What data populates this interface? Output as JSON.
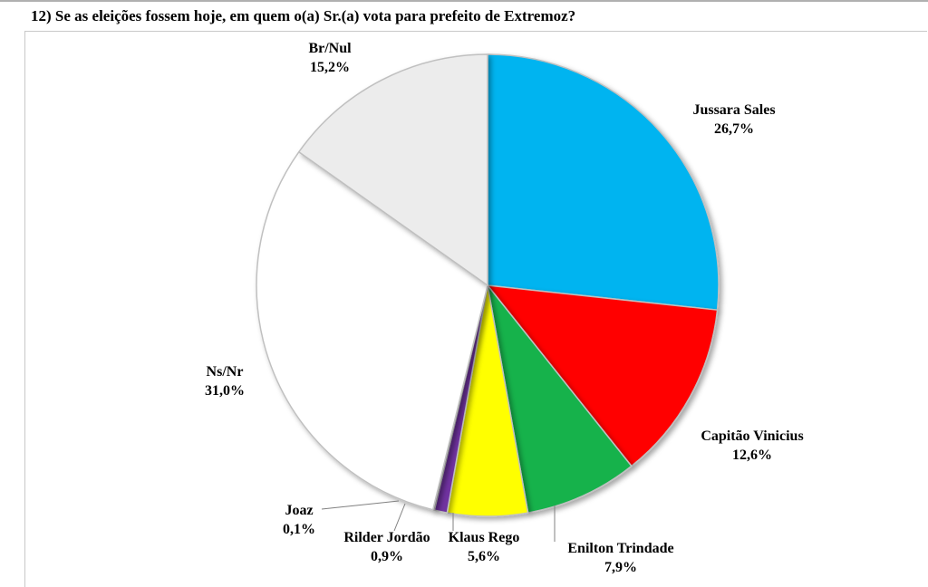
{
  "question": "12) Se as eleições fossem hoje, em quem o(a) Sr.(a) vota para prefeito de Extremoz?",
  "chart_data": {
    "type": "pie",
    "title": "12) Se as eleições fossem hoje, em quem o(a) Sr.(a) vota para prefeito de Extremoz?",
    "slices": [
      {
        "name": "Jussara Sales",
        "value": 26.7,
        "label": "26,7%",
        "color": "#00b4f0"
      },
      {
        "name": "Capitão Vinicius",
        "value": 12.6,
        "label": "12,6%",
        "color": "#ff0000"
      },
      {
        "name": "Enilton Trindade",
        "value": 7.9,
        "label": "7,9%",
        "color": "#12b24c"
      },
      {
        "name": "Klaus Rego",
        "value": 5.6,
        "label": "5,6%",
        "color": "#ffff00"
      },
      {
        "name": "Rilder Jordão",
        "value": 0.9,
        "label": "0,9%",
        "color": "#7030a0"
      },
      {
        "name": "Joaz",
        "value": 0.1,
        "label": "0,1%",
        "color": "#202020"
      },
      {
        "name": "Ns/Nr",
        "value": 31.0,
        "label": "31,0%",
        "color": "#ffffff"
      },
      {
        "name": "Br/Nul",
        "value": 15.2,
        "label": "15,2%",
        "color": "#ececec"
      }
    ]
  }
}
